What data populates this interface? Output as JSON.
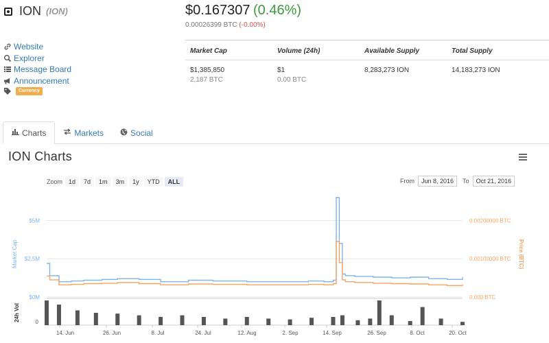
{
  "coin": {
    "name": "ION",
    "symbol": "(ION)"
  },
  "price": {
    "usd": "$0.167307",
    "change": "(0.46%)",
    "btc": "0.00026399 BTC",
    "btc_change": "(-0.00%)"
  },
  "links": [
    {
      "icon": "link-icon",
      "label": "Website"
    },
    {
      "icon": "search-icon",
      "label": "Explorer"
    },
    {
      "icon": "list-icon",
      "label": "Message Board"
    },
    {
      "icon": "bullhorn-icon",
      "label": "Announcement"
    }
  ],
  "tag": {
    "icon": "tag-icon",
    "label": "Currency"
  },
  "stats": {
    "headers": [
      "Market Cap",
      "Volume (24h)",
      "Available Supply",
      "Total Supply"
    ],
    "values": [
      {
        "main": "$1,385,850",
        "sub": "2,187 BTC"
      },
      {
        "main": "$1",
        "sub": "0.00 BTC"
      },
      {
        "main": "8,283,273 ION",
        "sub": ""
      },
      {
        "main": "14,183,273 ION",
        "sub": ""
      }
    ]
  },
  "tabs": [
    {
      "icon": "bar-chart-icon",
      "label": "Charts",
      "active": true
    },
    {
      "icon": "exchange-icon",
      "label": "Markets",
      "active": false
    },
    {
      "icon": "globe-icon",
      "label": "Social",
      "active": false
    }
  ],
  "charts_title": "ION Charts",
  "zoom": {
    "label": "Zoom",
    "options": [
      "1d",
      "7d",
      "1m",
      "3m",
      "1y",
      "YTD",
      "ALL"
    ],
    "selected": "ALL"
  },
  "range": {
    "from_label": "From",
    "from": "Jun 8, 2016",
    "to_label": "To",
    "to": "Oct 21, 2016"
  },
  "colors": {
    "market_cap": "#7cb5ec",
    "price": "#f7a35c",
    "volume": "#555555"
  },
  "chart_data": {
    "type": "line",
    "left_axis": {
      "label": "Market Cap",
      "ticks": [
        "$5M",
        "$2.5M",
        "$0M"
      ],
      "range": [
        0,
        6500000
      ]
    },
    "right_axis": {
      "label": "Price (BTC)",
      "ticks": [
        "0.00200000 BTC",
        "0.00100000 BTC",
        "0.000 BTC"
      ],
      "range": [
        0,
        0.0026
      ]
    },
    "volume_axis": {
      "label": "24h Vol",
      "ticks": [
        "0"
      ]
    },
    "x_ticks": [
      "14. Jun",
      "26. Jun",
      "8. Jul",
      "24. Jul",
      "12. Aug",
      "2. Sep",
      "14. Sep",
      "26. Sep",
      "8. Oct",
      "20. Oct"
    ],
    "x_range": [
      "2016-06-08",
      "2016-10-21"
    ],
    "series": [
      {
        "name": "Market Cap",
        "x": [
          "2016-06-08",
          "2016-06-09",
          "2016-06-12",
          "2016-06-16",
          "2016-06-20",
          "2016-06-26",
          "2016-07-01",
          "2016-07-08",
          "2016-07-15",
          "2016-07-24",
          "2016-08-01",
          "2016-08-12",
          "2016-08-20",
          "2016-09-01",
          "2016-09-06",
          "2016-09-09",
          "2016-09-10",
          "2016-09-11",
          "2016-09-12",
          "2016-09-13",
          "2016-09-16",
          "2016-09-22",
          "2016-09-28",
          "2016-10-04",
          "2016-10-10",
          "2016-10-16",
          "2016-10-21"
        ],
        "values": [
          2200000,
          1400000,
          1000000,
          1050000,
          1100000,
          1150000,
          1200000,
          1150000,
          1000000,
          1100000,
          1050000,
          1000000,
          1000000,
          1050000,
          1000000,
          1100000,
          6500000,
          3500000,
          1500000,
          1400000,
          1350000,
          1300000,
          1250000,
          1300000,
          1200000,
          1150000,
          1300000
        ]
      },
      {
        "name": "Price (BTC)",
        "x": [
          "2016-06-08",
          "2016-06-09",
          "2016-06-12",
          "2016-06-16",
          "2016-06-20",
          "2016-06-26",
          "2016-07-01",
          "2016-07-08",
          "2016-07-15",
          "2016-07-24",
          "2016-08-01",
          "2016-08-12",
          "2016-08-20",
          "2016-09-01",
          "2016-09-06",
          "2016-09-09",
          "2016-09-10",
          "2016-09-11",
          "2016-09-12",
          "2016-09-13",
          "2016-09-16",
          "2016-09-22",
          "2016-09-28",
          "2016-10-04",
          "2016-10-10",
          "2016-10-16",
          "2016-10-21"
        ],
        "values": [
          0.00055,
          0.00045,
          0.00032,
          0.00033,
          0.00035,
          0.00036,
          0.00038,
          0.00035,
          0.00032,
          0.00034,
          0.00033,
          0.00032,
          0.00032,
          0.00033,
          0.00032,
          0.00035,
          0.00145,
          0.0009,
          0.00045,
          0.0004,
          0.00038,
          0.00036,
          0.00035,
          0.00034,
          0.00032,
          0.0003,
          0.00033
        ]
      }
    ],
    "volume": {
      "x": [
        "2016-06-08",
        "2016-06-12",
        "2016-06-18",
        "2016-06-24",
        "2016-07-01",
        "2016-07-08",
        "2016-07-15",
        "2016-07-22",
        "2016-07-29",
        "2016-08-05",
        "2016-08-12",
        "2016-08-19",
        "2016-08-26",
        "2016-09-02",
        "2016-09-09",
        "2016-09-12",
        "2016-09-17",
        "2016-09-21",
        "2016-09-24",
        "2016-09-28",
        "2016-10-04",
        "2016-10-08",
        "2016-10-14",
        "2016-10-21"
      ],
      "values": [
        30,
        25,
        18,
        15,
        14,
        12,
        10,
        12,
        10,
        8,
        10,
        8,
        7,
        9,
        10,
        12,
        6,
        8,
        30,
        12,
        5,
        22,
        8,
        4
      ]
    }
  }
}
